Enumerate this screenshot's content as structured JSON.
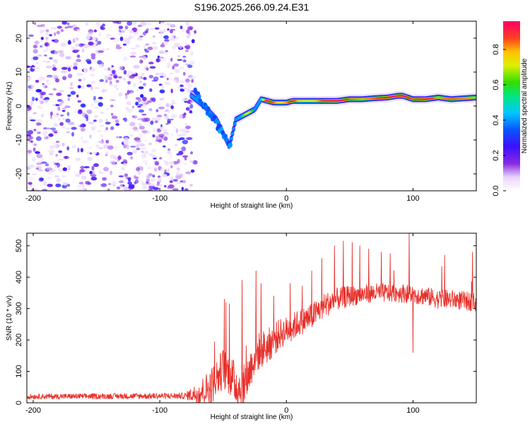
{
  "figure_title": "S196.2025.266.09.24.E31",
  "chart_data": [
    {
      "type": "heatmap",
      "panel": "spectrogram",
      "xlabel": "Height of straight line (km)",
      "ylabel": "Frequency (Hz)",
      "xlim": [
        -205,
        150
      ],
      "ylim": [
        -25,
        25
      ],
      "xticks": [
        -200,
        -100,
        0,
        100
      ],
      "xtick_labels": [
        "-200",
        "-100",
        "0",
        "100"
      ],
      "yticks": [
        20,
        10,
        0,
        -10,
        -20
      ],
      "ytick_labels": [
        "20",
        "10",
        "0",
        "-10",
        "-20"
      ],
      "colorbar": {
        "label": "Normalized spectral amplitude",
        "range": [
          0,
          0.96
        ],
        "ticks": [
          0.0,
          0.2,
          0.4,
          0.6,
          0.8
        ],
        "tick_labels": [
          "0.0",
          "0.2",
          "0.4",
          "0.6",
          "0.8"
        ]
      },
      "signal_trace": {
        "x": [
          -75,
          -65,
          -55,
          -50,
          -45,
          -40,
          -35,
          -30,
          -25,
          -20,
          -15,
          -10,
          -5,
          0,
          5,
          10,
          20,
          30,
          40,
          50,
          60,
          70,
          80,
          88,
          92,
          100,
          110,
          120,
          130,
          150
        ],
        "y": [
          3,
          0,
          -4,
          -8,
          -12,
          -4,
          -3,
          -2,
          -1,
          2,
          1.5,
          1,
          1,
          1,
          1.5,
          1.5,
          1.5,
          1.5,
          1.5,
          2,
          2,
          2.3,
          2.5,
          3,
          3,
          2,
          2,
          2.5,
          2,
          2.5
        ],
        "amplitude": [
          0.3,
          0.45,
          0.5,
          0.4,
          0.45,
          0.55,
          0.6,
          0.75,
          0.5,
          0.6,
          0.95,
          0.85,
          0.7,
          0.8,
          0.95,
          0.75,
          0.7,
          0.9,
          0.95,
          0.85,
          0.8,
          0.85,
          0.95,
          0.9,
          0.95,
          0.85,
          0.95,
          0.8,
          0.85,
          0.8
        ]
      },
      "noise_region": {
        "x_start": -205,
        "x_end": -72,
        "amplitude_max": 0.25
      }
    },
    {
      "type": "line",
      "panel": "snr",
      "xlabel": "Height of straight line (km)",
      "ylabel": "SNR (10 * v/v)",
      "xlim": [
        -205,
        150
      ],
      "ylim": [
        0,
        540
      ],
      "xticks": [
        -200,
        -100,
        0,
        100
      ],
      "xtick_labels": [
        "-200",
        "-100",
        "0",
        "100"
      ],
      "yticks": [
        0,
        100,
        200,
        300,
        400,
        500
      ],
      "ytick_labels": [
        "0",
        "100",
        "200",
        "300",
        "400",
        "500"
      ],
      "color": "#e8302a",
      "baseline": {
        "x": [
          -205,
          -80,
          -70,
          -60,
          -55,
          -50,
          -45,
          -40,
          -35,
          -30,
          -25,
          -20,
          -15,
          -10,
          -5,
          0,
          10,
          20,
          30,
          40,
          50,
          60,
          70,
          80,
          90,
          100,
          110,
          120,
          130,
          140,
          150
        ],
        "y": [
          20,
          22,
          30,
          50,
          80,
          110,
          90,
          60,
          40,
          90,
          150,
          170,
          180,
          200,
          220,
          230,
          255,
          275,
          310,
          330,
          340,
          345,
          350,
          350,
          350,
          345,
          340,
          330,
          330,
          325,
          320
        ]
      },
      "noise_amplitude": {
        "x": [
          -205,
          -80,
          -60,
          -40,
          -20,
          0,
          30,
          60,
          100,
          150
        ],
        "y": [
          8,
          10,
          60,
          70,
          60,
          45,
          40,
          30,
          30,
          30
        ]
      },
      "spikes": {
        "x": [
          -49,
          -45,
          -35,
          -24,
          -20,
          -10,
          3,
          20,
          28,
          38,
          45,
          52,
          58,
          65,
          75,
          82,
          97,
          100,
          125,
          147
        ],
        "y": [
          330,
          315,
          390,
          420,
          380,
          340,
          380,
          420,
          460,
          500,
          515,
          510,
          500,
          490,
          480,
          475,
          540,
          160,
          470,
          480
        ]
      }
    }
  ]
}
